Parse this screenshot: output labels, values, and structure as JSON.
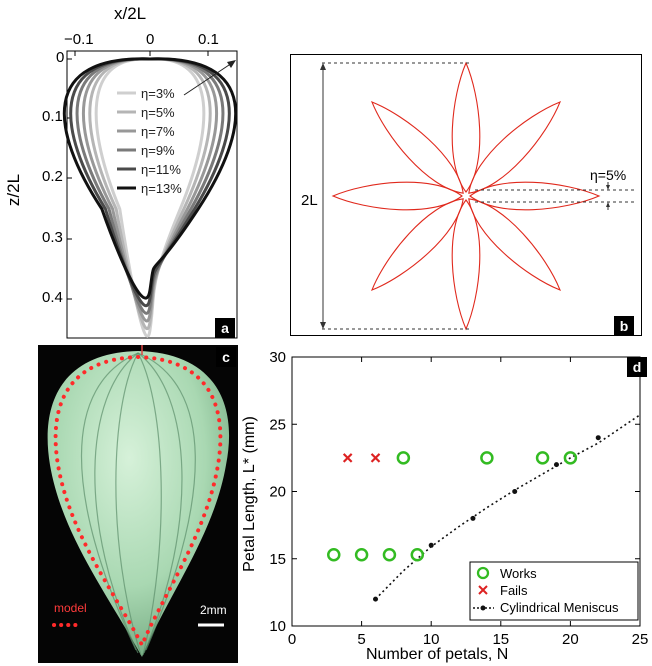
{
  "panels": {
    "a": {
      "badge": "a",
      "xlabel": "x/2L",
      "ylabel": "z/2L",
      "xticks": [
        "−0.1",
        "0",
        "0.1"
      ],
      "yticks": [
        "0",
        "0.1",
        "0.2",
        "0.3",
        "0.4"
      ],
      "legend": [
        "η=3%",
        "η=5%",
        "η=7%",
        "η=9%",
        "η=11%",
        "η=13%"
      ],
      "line_colors": [
        "#cfcfcf",
        "#b5b5b5",
        "#989898",
        "#7a7a7a",
        "#4a4a4a",
        "#111111"
      ]
    },
    "b": {
      "badge": "b",
      "length_label": "2L",
      "eta_label": "η=5%",
      "petal_count": 8,
      "petal_color": "#e0291d"
    },
    "c": {
      "badge": "c",
      "model_label": "model",
      "scale_label": "2mm",
      "model_color": "#ff2a2a"
    },
    "d": {
      "badge": "d",
      "chart_data": {
        "type": "scatter",
        "xlabel": "Number of petals, N",
        "ylabel": "Petal Length, L* (mm)",
        "xlim": [
          0,
          25
        ],
        "ylim": [
          10,
          30
        ],
        "xticks": [
          "0",
          "5",
          "10",
          "15",
          "20",
          "25"
        ],
        "yticks": [
          "10",
          "15",
          "20",
          "25",
          "30"
        ],
        "series": [
          {
            "name": "Works",
            "marker": "circle-open",
            "color": "#33bb22",
            "points": [
              [
                3,
                15.3
              ],
              [
                5,
                15.3
              ],
              [
                7,
                15.3
              ],
              [
                9,
                15.3
              ],
              [
                8,
                22.5
              ],
              [
                14,
                22.5
              ],
              [
                18,
                22.5
              ],
              [
                20,
                22.5
              ]
            ]
          },
          {
            "name": "Fails",
            "marker": "x",
            "color": "#dd2222",
            "points": [
              [
                4,
                22.5
              ],
              [
                6,
                22.5
              ]
            ]
          },
          {
            "name": "Cylindrical Meniscus",
            "marker": "dot-dotted-line",
            "color": "#111111",
            "points": [
              [
                6,
                12
              ],
              [
                10,
                16
              ],
              [
                13,
                18
              ],
              [
                16,
                20
              ],
              [
                19,
                22
              ],
              [
                22,
                24
              ]
            ],
            "curve": [
              [
                6,
                12
              ],
              [
                8,
                14.1
              ],
              [
                10,
                15.9
              ],
              [
                12,
                17.4
              ],
              [
                14,
                18.8
              ],
              [
                16,
                20.1
              ],
              [
                18,
                21.3
              ],
              [
                20,
                22.5
              ],
              [
                22,
                23.6
              ],
              [
                25,
                25.7
              ]
            ]
          }
        ]
      }
    }
  }
}
